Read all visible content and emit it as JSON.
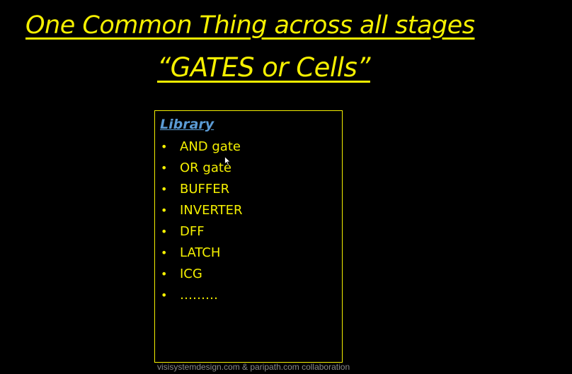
{
  "slide": {
    "title_line1": "One Common Thing across all stages",
    "title_line2": "“GATES or Cells”",
    "library_heading": "Library",
    "bullet_glyph": "•",
    "items": [
      "AND gate",
      "OR gate",
      "BUFFER",
      "INVERTER",
      "DFF",
      "LATCH",
      "ICG",
      "………"
    ],
    "footer": "visisystemdesign.com & paripath.com collaboration"
  },
  "colors": {
    "background": "#000000",
    "title": "#f5f000",
    "heading": "#5b9bd5",
    "box_border": "#f5f000",
    "footer": "#8a8a8a"
  },
  "icons": {
    "cursor": "mouse-pointer-icon"
  }
}
